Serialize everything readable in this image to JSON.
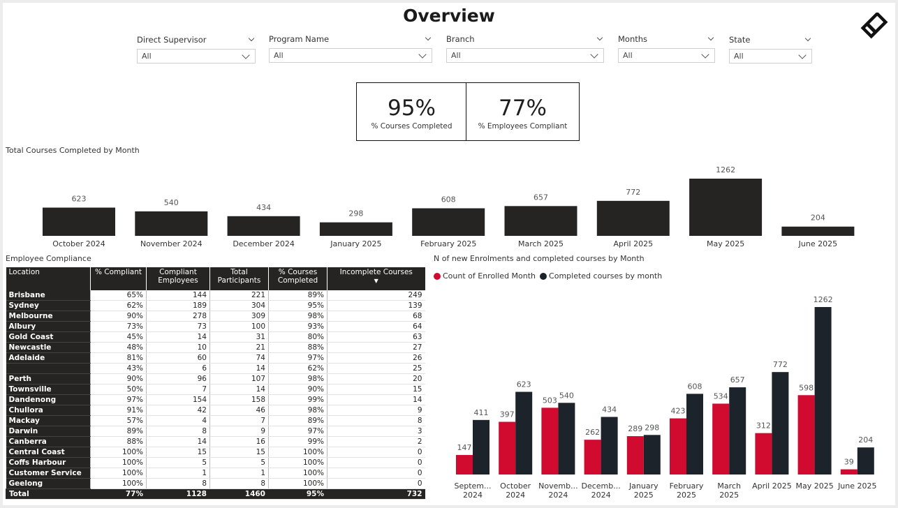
{
  "page_title": "Overview",
  "filters": [
    {
      "label": "Direct Supervisor",
      "value": "All"
    },
    {
      "label": "Program Name",
      "value": "All"
    },
    {
      "label": "Branch",
      "value": "All"
    },
    {
      "label": "Months",
      "value": "All"
    },
    {
      "label": "State",
      "value": "All"
    }
  ],
  "kpis": [
    {
      "value": "95%",
      "caption": "% Courses Completed"
    },
    {
      "value": "77%",
      "caption": "% Employees Compliant"
    }
  ],
  "colors": {
    "dark": "#252423",
    "red": "#D10A2F",
    "navy": "#1C232B"
  },
  "chart_data": [
    {
      "type": "bar",
      "title": "Total Courses Completed by Month",
      "categories": [
        "October 2024",
        "November 2024",
        "December 2024",
        "January 2025",
        "February 2025",
        "March 2025",
        "April 2025",
        "May 2025",
        "June 2025"
      ],
      "values": [
        623,
        540,
        434,
        298,
        608,
        657,
        772,
        1262,
        204
      ],
      "ylim": [
        0,
        1400
      ],
      "grid": false
    },
    {
      "type": "bar",
      "title": "N of new Enrolments and completed courses by Month",
      "legend_position": "top-left",
      "categories": [
        [
          "Septem...",
          "2024"
        ],
        [
          "October",
          "2024"
        ],
        [
          "Novemb...",
          "2024"
        ],
        [
          "Decemb...",
          "2024"
        ],
        [
          "January",
          "2025"
        ],
        [
          "February",
          "2025"
        ],
        [
          "March",
          "2025"
        ],
        [
          "April 2025",
          ""
        ],
        [
          "May 2025",
          ""
        ],
        [
          "June 2025",
          ""
        ]
      ],
      "series": [
        {
          "name": "Count of Enrolled Month",
          "color": "#D10A2F",
          "values": [
            147,
            397,
            503,
            262,
            289,
            423,
            534,
            312,
            598,
            39
          ]
        },
        {
          "name": "Completed courses by month",
          "color": "#1C232B",
          "values": [
            411,
            623,
            540,
            434,
            298,
            608,
            657,
            772,
            1262,
            204
          ]
        }
      ],
      "ylim": [
        0,
        1350
      ],
      "grid": false
    }
  ],
  "compliance": {
    "title": "Employee Compliance",
    "columns": [
      "Location",
      "% Compliant",
      "Compliant Employees",
      "Total Participants",
      "% Courses Completed",
      "Incomplete Courses"
    ],
    "rows": [
      [
        "Brisbane",
        "65%",
        "144",
        "221",
        "89%",
        "249"
      ],
      [
        "Sydney",
        "62%",
        "189",
        "304",
        "95%",
        "139"
      ],
      [
        "Melbourne",
        "90%",
        "278",
        "309",
        "98%",
        "68"
      ],
      [
        "Albury",
        "73%",
        "73",
        "100",
        "93%",
        "64"
      ],
      [
        "Gold Coast",
        "45%",
        "14",
        "31",
        "80%",
        "63"
      ],
      [
        "Newcastle",
        "48%",
        "10",
        "21",
        "88%",
        "27"
      ],
      [
        "Adelaide",
        "81%",
        "60",
        "74",
        "97%",
        "26"
      ],
      [
        "",
        "43%",
        "6",
        "14",
        "62%",
        "25"
      ],
      [
        "Perth",
        "90%",
        "96",
        "107",
        "98%",
        "20"
      ],
      [
        "Townsville",
        "50%",
        "7",
        "14",
        "90%",
        "15"
      ],
      [
        "Dandenong",
        "97%",
        "154",
        "158",
        "99%",
        "14"
      ],
      [
        "Chullora",
        "91%",
        "42",
        "46",
        "98%",
        "9"
      ],
      [
        "Mackay",
        "57%",
        "4",
        "7",
        "89%",
        "8"
      ],
      [
        "Darwin",
        "89%",
        "8",
        "9",
        "97%",
        "3"
      ],
      [
        "Canberra",
        "88%",
        "14",
        "16",
        "99%",
        "2"
      ],
      [
        "Central Coast",
        "100%",
        "15",
        "15",
        "100%",
        "0"
      ],
      [
        "Coffs Harbour",
        "100%",
        "5",
        "5",
        "100%",
        "0"
      ],
      [
        "Customer Service",
        "100%",
        "1",
        "1",
        "100%",
        "0"
      ],
      [
        "Geelong",
        "100%",
        "8",
        "8",
        "100%",
        "0"
      ]
    ],
    "total": [
      "Total",
      "77%",
      "1128",
      "1460",
      "95%",
      "732"
    ]
  }
}
